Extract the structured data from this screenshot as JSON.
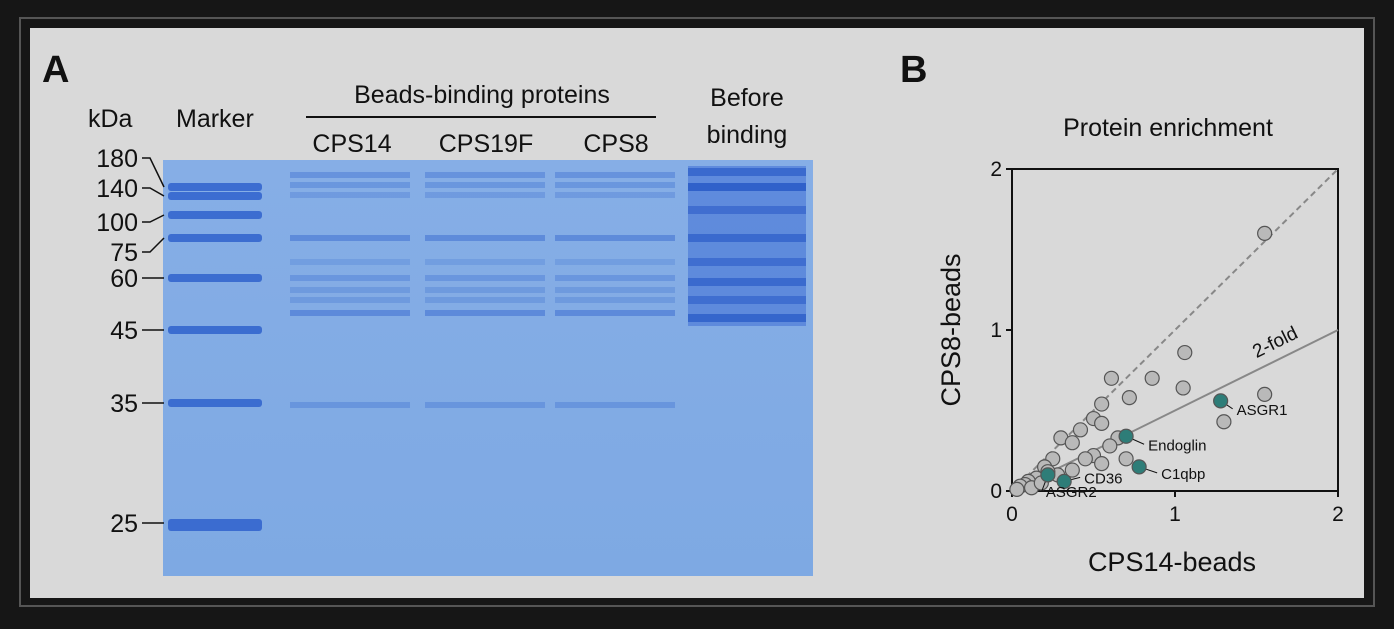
{
  "panel_a": {
    "letter": "A",
    "unit": "kDa",
    "marker_label": "Marker",
    "group_label": "Beads-binding proteins",
    "lanes": [
      "CPS14",
      "CPS19F",
      "CPS8"
    ],
    "before_label": [
      "Before",
      "binding"
    ],
    "marker_kda": [
      180,
      140,
      100,
      75,
      60,
      45,
      35,
      25
    ]
  },
  "chart_data": {
    "type": "scatter",
    "letter": "B",
    "title": "Protein enrichment",
    "x_label": "CPS14-beads",
    "y_label": "CPS8-beads",
    "xlim": [
      0,
      2
    ],
    "ylim": [
      0,
      2
    ],
    "xticks": [
      0,
      1,
      2
    ],
    "yticks": [
      0,
      1,
      2
    ],
    "reference_lines": [
      {
        "slope": 1,
        "style": "dashed",
        "color": "#888888"
      },
      {
        "slope": 0.5,
        "style": "solid",
        "color": "#888888",
        "label": "2-fold"
      }
    ],
    "series": [
      {
        "color": "#b9b9b9",
        "x": [
          1.55,
          1.06,
          0.61,
          0.86,
          1.05,
          0.72,
          1.55,
          1.3,
          0.55,
          0.5,
          0.42,
          0.55,
          0.3,
          0.37,
          0.65,
          0.6,
          0.5,
          0.45,
          0.55,
          0.7,
          0.37,
          0.25,
          0.2,
          0.28,
          0.15,
          0.1,
          0.08,
          0.05,
          0.03,
          0.12,
          0.18,
          0.22
        ],
        "values": [
          1.6,
          0.86,
          0.7,
          0.7,
          0.64,
          0.58,
          0.6,
          0.43,
          0.54,
          0.45,
          0.38,
          0.42,
          0.33,
          0.3,
          0.33,
          0.28,
          0.22,
          0.2,
          0.17,
          0.2,
          0.13,
          0.2,
          0.15,
          0.1,
          0.08,
          0.06,
          0.04,
          0.03,
          0.01,
          0.02,
          0.05,
          0.12
        ]
      },
      {
        "color": "#2e7d78",
        "x": [
          1.28,
          0.7,
          0.78,
          0.32,
          0.22
        ],
        "values": [
          0.56,
          0.34,
          0.15,
          0.06,
          0.1
        ],
        "point_labels": [
          "ASGR1",
          "Endoglin",
          "C1qbp",
          "CD36",
          "ASGR2"
        ]
      }
    ]
  }
}
